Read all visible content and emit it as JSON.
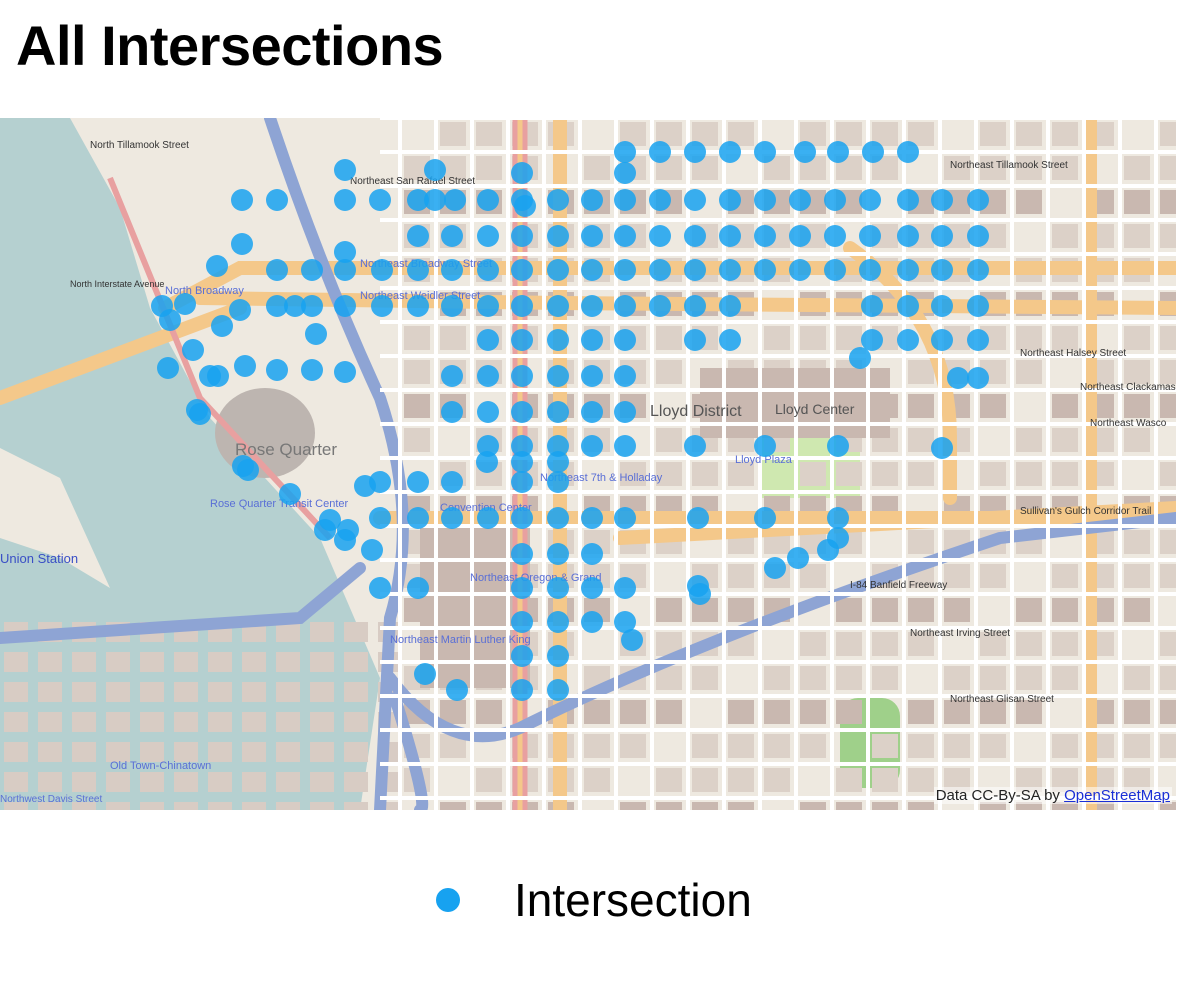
{
  "title": "All Intersections",
  "legend": {
    "items": [
      {
        "label": "Intersection",
        "color": "#17a2f0"
      }
    ]
  },
  "map": {
    "attribution_prefix": "Data CC-By-SA by",
    "attribution_link": "OpenStreetMap",
    "colors": {
      "background": "#eee9e0",
      "water": "#b5d0d0",
      "major_road": "#f4c88a",
      "highway": "#8ea4d4",
      "rail": "#e8a0a0",
      "building": "#c9b8b0",
      "park": "#cfe8b0",
      "marker": "#17a2f0"
    },
    "labels": [
      "North Tillamook Street",
      "Northeast Tillamook Street",
      "Northeast San Rafael Street",
      "Northeast Broadway Street",
      "North Broadway",
      "Northeast Weidler Street",
      "Northeast Halsey Street",
      "Northeast Clackamas",
      "Northeast Wasco",
      "Lloyd District",
      "Lloyd Center",
      "Rose Quarter",
      "Rose Quarter Transit Center",
      "Convention Center",
      "Lloyd Plaza",
      "Northeast 7th & Holladay",
      "Sullivan's Gulch Corridor Trail",
      "Northeast Irving Street",
      "Northeast Glisan Street",
      "Union Station",
      "Old Town-Chinatown",
      "Northwest Davis Street",
      "Northeast Oregon & Grand",
      "Northeast Martin Luther King",
      "North Interstate Avenue",
      "I-84 Banfield Freeway"
    ]
  }
}
